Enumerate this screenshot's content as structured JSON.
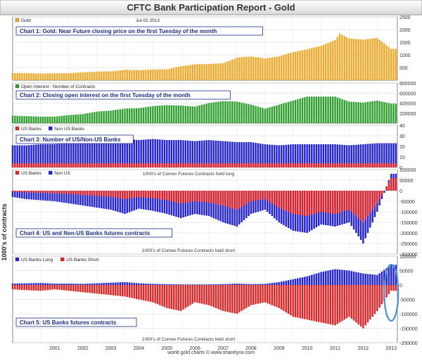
{
  "title": "CFTC Bank Participation Report - Gold",
  "footer": "world gold charts  © www.sharelynx.com",
  "y_axis_label": "1000's of contracts",
  "x_labels": [
    "2001",
    "2002",
    "2003",
    "2004",
    "2005",
    "2006",
    "2007",
    "2008",
    "2009",
    "2010",
    "2011",
    "2012",
    "2013"
  ],
  "colors": {
    "gold": "#f5a623",
    "oi": "#2aa02a",
    "us": "#ee1c1c",
    "nonus": "#1c1cee",
    "highlight": "#4a8fd8"
  },
  "chart_data": [
    {
      "type": "bar",
      "title": "Chart 1: Gold: Near Future closing price on the first Tuesday of the month",
      "legend": [
        "Gold"
      ],
      "date_label": "Jul-02 2013",
      "ylim": [
        0,
        2500
      ],
      "yticks": [
        500,
        1000,
        1500,
        2000,
        2500
      ],
      "x": [
        "2000-01",
        "2000-07",
        "2001-01",
        "2001-07",
        "2002-01",
        "2002-07",
        "2003-01",
        "2003-07",
        "2004-01",
        "2004-07",
        "2005-01",
        "2005-07",
        "2006-01",
        "2006-07",
        "2007-01",
        "2007-07",
        "2008-01",
        "2008-07",
        "2009-01",
        "2009-07",
        "2010-01",
        "2010-07",
        "2011-01",
        "2011-07",
        "2011-09",
        "2012-01",
        "2012-07",
        "2013-01",
        "2013-07"
      ],
      "values": [
        285,
        280,
        265,
        270,
        280,
        310,
        340,
        350,
        410,
        395,
        425,
        430,
        550,
        630,
        640,
        670,
        890,
        940,
        860,
        940,
        1110,
        1220,
        1360,
        1580,
        1840,
        1650,
        1600,
        1670,
        1240
      ]
    },
    {
      "type": "bar",
      "title": "Chart 2: Closing open interest on the first Tuesday of the month",
      "legend": [
        "Open Interest - Number of Contracts"
      ],
      "ylim": [
        0,
        800000
      ],
      "yticks": [
        200000,
        400000,
        600000,
        800000
      ],
      "x": [
        "2000-01",
        "2000-07",
        "2001-01",
        "2001-07",
        "2002-01",
        "2002-07",
        "2003-01",
        "2003-07",
        "2004-01",
        "2004-07",
        "2005-01",
        "2005-07",
        "2006-01",
        "2006-07",
        "2007-01",
        "2007-07",
        "2008-01",
        "2008-07",
        "2009-01",
        "2009-07",
        "2010-01",
        "2010-07",
        "2011-01",
        "2011-07",
        "2012-01",
        "2012-07",
        "2013-01",
        "2013-07"
      ],
      "values": [
        150000,
        140000,
        130000,
        130000,
        160000,
        180000,
        230000,
        250000,
        290000,
        300000,
        340000,
        360000,
        350000,
        330000,
        400000,
        440000,
        430000,
        370000,
        290000,
        370000,
        450000,
        530000,
        530000,
        530000,
        430000,
        410000,
        450000,
        390000
      ]
    },
    {
      "type": "bar",
      "title": "Chart 3: Number of US/Non-US Banks",
      "legend": [
        "US Banks",
        "Non US Banks"
      ],
      "ylim": [
        0,
        40
      ],
      "yticks": [
        0,
        10,
        20,
        30,
        40
      ],
      "x": [
        "2000-01",
        "2000-07",
        "2001-01",
        "2001-07",
        "2002-01",
        "2002-07",
        "2003-01",
        "2003-07",
        "2004-01",
        "2004-07",
        "2005-01",
        "2005-07",
        "2006-01",
        "2006-07",
        "2007-01",
        "2007-07",
        "2008-01",
        "2008-07",
        "2009-01",
        "2009-07",
        "2010-01",
        "2010-07",
        "2011-01",
        "2011-07",
        "2012-01",
        "2012-07",
        "2013-01",
        "2013-07"
      ],
      "series": [
        {
          "name": "US Banks",
          "values": [
            4,
            4,
            4,
            4,
            4,
            4,
            4,
            4,
            4,
            4,
            4,
            4,
            4,
            4,
            4,
            4,
            4,
            4,
            4,
            4,
            4,
            4,
            4,
            4,
            4,
            4,
            4,
            4
          ]
        },
        {
          "name": "Non US Banks",
          "values": [
            21,
            21,
            22,
            22,
            23,
            24,
            25,
            26,
            27,
            26,
            27,
            26,
            26,
            25,
            26,
            25,
            24,
            24,
            22,
            21,
            22,
            22,
            22,
            22,
            21,
            22,
            23,
            23
          ]
        }
      ]
    },
    {
      "type": "bar",
      "title": "Chart 4: US and Non-US Banks futures contracts",
      "legend": [
        "US Banks",
        "Non US"
      ],
      "upper_label": "1000's of Comex Futures Contracts held long",
      "lower_label": "1000's of Comex Futures Contracts held short",
      "ylim": [
        -300000,
        100000
      ],
      "yticks": [
        100000,
        50000,
        0,
        -50000,
        -100000,
        -150000,
        -200000,
        -250000,
        -300000
      ],
      "x": [
        "2000-01",
        "2000-07",
        "2001-01",
        "2001-07",
        "2002-01",
        "2002-07",
        "2003-01",
        "2003-07",
        "2004-01",
        "2004-07",
        "2005-01",
        "2005-07",
        "2006-01",
        "2006-07",
        "2007-01",
        "2007-07",
        "2008-01",
        "2008-07",
        "2009-01",
        "2009-07",
        "2010-01",
        "2010-07",
        "2011-01",
        "2011-07",
        "2012-01",
        "2012-07",
        "2013-01",
        "2013-07"
      ],
      "series": [
        {
          "name": "US Banks",
          "values": [
            -5000,
            -8000,
            -10000,
            -12000,
            -15000,
            -20000,
            -25000,
            -28000,
            -40000,
            -30000,
            -35000,
            -45000,
            -60000,
            -50000,
            -55000,
            -70000,
            -90000,
            -50000,
            -40000,
            -80000,
            -110000,
            -120000,
            -100000,
            -110000,
            -90000,
            -150000,
            -60000,
            60000
          ]
        },
        {
          "name": "Non US",
          "values": [
            -30000,
            -40000,
            -45000,
            -50000,
            -60000,
            -70000,
            -80000,
            -90000,
            -110000,
            -85000,
            -95000,
            -110000,
            -130000,
            -110000,
            -120000,
            -150000,
            -170000,
            -110000,
            -90000,
            -150000,
            -190000,
            -200000,
            -160000,
            -170000,
            -150000,
            -250000,
            -100000,
            80000
          ]
        }
      ]
    },
    {
      "type": "bar",
      "title": "Chart 5: US Banks futures contracts",
      "legend": [
        "US Banks Long",
        "US Banks Short"
      ],
      "upper_label": "",
      "lower_label": "1000's of Comex Futures Contracts held short",
      "ylim": [
        -200000,
        100000
      ],
      "yticks": [
        100000,
        50000,
        0,
        -50000,
        -100000,
        -150000,
        -200000
      ],
      "x": [
        "2000-01",
        "2000-07",
        "2001-01",
        "2001-07",
        "2002-01",
        "2002-07",
        "2003-01",
        "2003-07",
        "2004-01",
        "2004-07",
        "2005-01",
        "2005-07",
        "2006-01",
        "2006-07",
        "2007-01",
        "2007-07",
        "2008-01",
        "2008-07",
        "2009-01",
        "2009-07",
        "2010-01",
        "2010-07",
        "2011-01",
        "2011-07",
        "2012-01",
        "2012-07",
        "2013-01",
        "2013-07"
      ],
      "series": [
        {
          "name": "US Banks Long",
          "values": [
            5000,
            6000,
            7000,
            5000,
            5000,
            4000,
            6000,
            8000,
            10000,
            6000,
            4000,
            3000,
            2000,
            2000,
            2000,
            3000,
            5000,
            3000,
            4000,
            10000,
            20000,
            30000,
            45000,
            55000,
            50000,
            40000,
            35000,
            70000
          ]
        },
        {
          "name": "US Banks Short",
          "values": [
            -15000,
            -18000,
            -20000,
            -15000,
            -20000,
            -25000,
            -30000,
            -35000,
            -40000,
            -50000,
            -60000,
            -80000,
            -90000,
            -60000,
            -70000,
            -90000,
            -100000,
            -70000,
            -60000,
            -80000,
            -110000,
            -120000,
            -130000,
            -140000,
            -110000,
            -150000,
            -90000,
            -20000
          ]
        }
      ],
      "highlight_note": ""
    }
  ]
}
